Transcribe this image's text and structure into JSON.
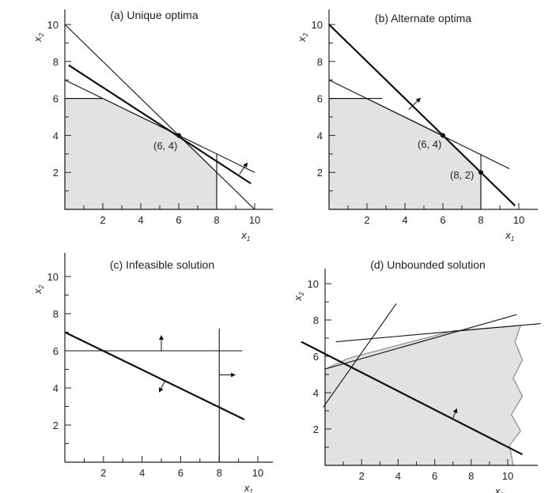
{
  "panels": [
    {
      "id": "a",
      "title": "(a) Unique optima",
      "xticks": [
        "2",
        "4",
        "6",
        "8",
        "10"
      ],
      "yticks": [
        "2",
        "4",
        "6",
        "8",
        "10"
      ],
      "xlabel": "x",
      "xlabel_sub": "1",
      "ylabel": "x",
      "ylabel_sub": "2",
      "point_labels": [
        "(6, 4)"
      ],
      "feasible_region": [
        [
          0,
          0
        ],
        [
          0,
          6
        ],
        [
          2,
          6
        ],
        [
          6,
          4
        ],
        [
          8,
          2
        ],
        [
          8,
          0
        ]
      ],
      "constraint_lines": [
        [
          [
            0,
            6
          ],
          [
            2,
            6
          ]
        ],
        [
          [
            0,
            10
          ],
          [
            10,
            0
          ]
        ],
        [
          [
            0,
            7
          ],
          [
            10,
            2
          ]
        ],
        [
          [
            8,
            0
          ],
          [
            8,
            3
          ]
        ]
      ],
      "objective_lines": [
        [
          [
            0.2,
            7.8
          ],
          [
            9.8,
            1.4
          ]
        ]
      ],
      "optimal_points": [
        [
          6,
          4
        ]
      ],
      "arrows": [
        [
          [
            9.2,
            1.9
          ],
          [
            9.6,
            2.5
          ]
        ]
      ]
    },
    {
      "id": "b",
      "title": "(b) Alternate optima",
      "xticks": [
        "2",
        "4",
        "6",
        "8",
        "10"
      ],
      "yticks": [
        "2",
        "4",
        "6",
        "8",
        "10"
      ],
      "xlabel": "x",
      "xlabel_sub": "1",
      "ylabel": "x",
      "ylabel_sub": "2",
      "point_labels": [
        "(6, 4)",
        "(8, 2)"
      ],
      "feasible_region": [
        [
          0,
          0
        ],
        [
          0,
          6
        ],
        [
          2,
          6
        ],
        [
          6,
          4
        ],
        [
          8,
          2
        ],
        [
          8,
          0
        ]
      ],
      "constraint_lines": [
        [
          [
            0,
            6
          ],
          [
            2.8,
            6
          ]
        ],
        [
          [
            0,
            7
          ],
          [
            9.5,
            2.2
          ]
        ],
        [
          [
            8,
            0
          ],
          [
            8,
            3
          ]
        ]
      ],
      "objective_lines": [
        [
          [
            0,
            10
          ],
          [
            9.8,
            0.2
          ]
        ]
      ],
      "optimal_points": [
        [
          6,
          4
        ],
        [
          8,
          2
        ]
      ],
      "arrows": [
        [
          [
            4.2,
            5.4
          ],
          [
            4.8,
            6
          ]
        ]
      ]
    },
    {
      "id": "c",
      "title": "(c) Infeasible solution",
      "xticks": [
        "2",
        "4",
        "6",
        "8",
        "10"
      ],
      "yticks": [
        "2",
        "4",
        "6",
        "8",
        "10"
      ],
      "xlabel": "x",
      "xlabel_sub": "1",
      "ylabel": "x",
      "ylabel_sub": "2",
      "point_labels": [],
      "feasible_region": [],
      "constraint_lines": [
        [
          [
            0,
            6
          ],
          [
            9.2,
            6
          ]
        ],
        [
          [
            8,
            0
          ],
          [
            8,
            7.2
          ]
        ]
      ],
      "objective_lines": [
        [
          [
            0,
            7
          ],
          [
            9.3,
            2.3
          ]
        ]
      ],
      "optimal_points": [],
      "arrows": [
        [
          [
            5,
            6
          ],
          [
            5,
            6.8
          ]
        ],
        [
          [
            8,
            4.7
          ],
          [
            8.8,
            4.7
          ]
        ],
        [
          [
            5.2,
            4.4
          ],
          [
            4.9,
            3.8
          ]
        ]
      ]
    },
    {
      "id": "d",
      "title": "(d) Unbounded solution",
      "xticks": [
        "2",
        "4",
        "6",
        "8",
        "10"
      ],
      "yticks": [
        "2",
        "4",
        "6",
        "8",
        "10"
      ],
      "xlabel": "x",
      "xlabel_sub": "1",
      "ylabel": "x",
      "ylabel_sub": "2",
      "point_labels": [],
      "feasible_region": [
        [
          0,
          0
        ],
        [
          0,
          5.3
        ],
        [
          1.3,
          5.9
        ],
        [
          7,
          7.4
        ],
        [
          10.7,
          7.7
        ],
        [
          10.4,
          6.8
        ],
        [
          10.8,
          5.8
        ],
        [
          10.3,
          4.8
        ],
        [
          10.8,
          3.8
        ],
        [
          10.2,
          2.8
        ],
        [
          10.7,
          1.9
        ],
        [
          10.1,
          1.1
        ],
        [
          10.3,
          0
        ]
      ],
      "constraint_lines": [
        [
          [
            0,
            5.3
          ],
          [
            10.5,
            8.3
          ]
        ],
        [
          [
            0.6,
            6.8
          ],
          [
            11.8,
            7.8
          ]
        ],
        [
          [
            -0.1,
            3.2
          ],
          [
            3.9,
            8.9
          ]
        ]
      ],
      "objective_lines": [
        [
          [
            -1.3,
            6.8
          ],
          [
            10.8,
            0.6
          ]
        ]
      ],
      "optimal_points": [],
      "arrows": [
        [
          [
            7,
            2.6
          ],
          [
            7.2,
            3.1
          ]
        ]
      ]
    }
  ]
}
